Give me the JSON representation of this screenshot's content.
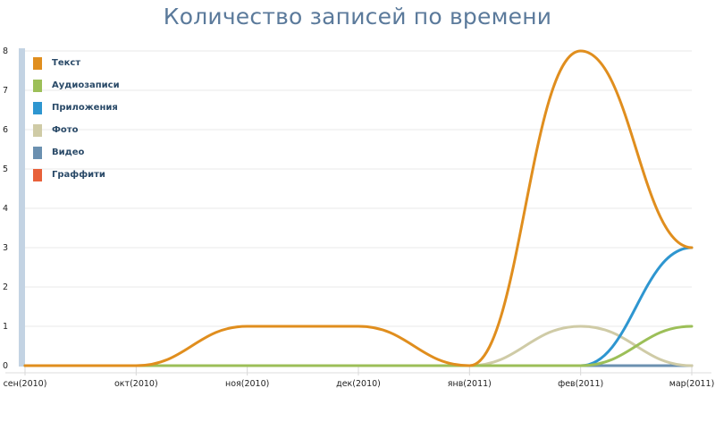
{
  "chart_data": {
    "type": "line",
    "title": "Количество записей по времени",
    "categories": [
      "сен(2010)",
      "окт(2010)",
      "ноя(2010)",
      "дек(2010)",
      "янв(2011)",
      "фев(2011)",
      "мар(2011)"
    ],
    "ylim": [
      0,
      8
    ],
    "y_ticks": [
      "0",
      "1",
      "2",
      "3",
      "4",
      "5",
      "6",
      "7",
      "8"
    ],
    "grid": true,
    "legend_position": "top-left",
    "series": [
      {
        "name": "Граффити",
        "color": "#e8613a",
        "values": [
          0,
          0,
          0,
          0,
          0,
          0,
          0
        ]
      },
      {
        "name": "Видео",
        "color": "#6b90b0",
        "values": [
          0,
          0,
          0,
          0,
          0,
          0,
          0
        ]
      },
      {
        "name": "Фото",
        "color": "#cfcba6",
        "values": [
          0,
          0,
          0,
          0,
          0,
          1,
          0
        ]
      },
      {
        "name": "Приложения",
        "color": "#2e96d0",
        "values": [
          0,
          0,
          0,
          0,
          0,
          0,
          3
        ]
      },
      {
        "name": "Аудиозаписи",
        "color": "#9cbf58",
        "values": [
          0,
          0,
          0,
          0,
          0,
          0,
          1
        ]
      },
      {
        "name": "Текст",
        "color": "#e08e1e",
        "values": [
          0,
          0,
          1,
          1,
          0,
          8,
          3
        ]
      }
    ],
    "legend_order": [
      "Текст",
      "Аудиозаписи",
      "Приложения",
      "Фото",
      "Видео",
      "Граффити"
    ]
  }
}
